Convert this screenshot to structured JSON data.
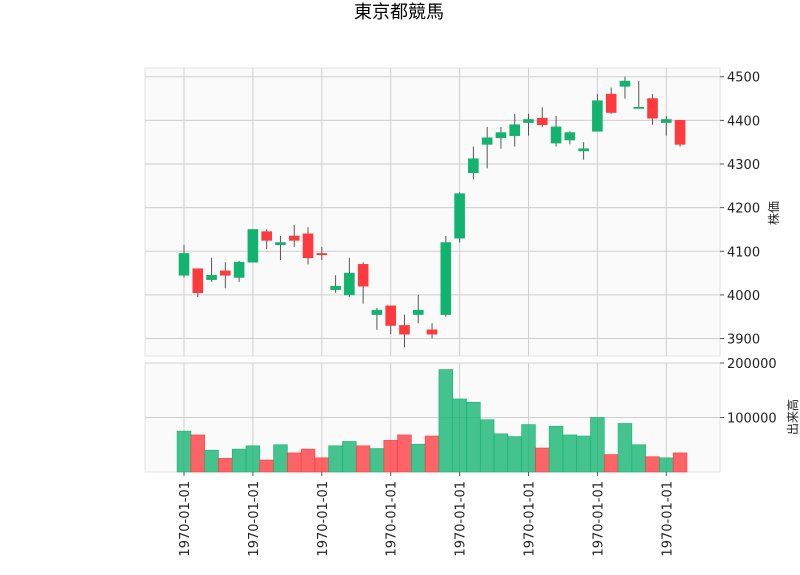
{
  "chart_data": {
    "type": "candlestick",
    "title": "東京都競馬",
    "price_ylabel": "株価",
    "volume_ylabel": "出来高",
    "price_ylim": [
      3860,
      4520
    ],
    "price_yticks": [
      "3900",
      "4000",
      "4100",
      "4200",
      "4300",
      "4400",
      "4500"
    ],
    "volume_ylim": [
      0,
      200000
    ],
    "volume_yticks": [
      "100000",
      "200000"
    ],
    "xtick_labels": [
      "1970-01-01",
      "1970-01-01",
      "1970-01-01",
      "1970-01-01",
      "1970-01-01",
      "1970-01-01",
      "1970-01-01",
      "1970-01-01"
    ],
    "xtick_indices": [
      0,
      5,
      10,
      15,
      20,
      25,
      30,
      35
    ],
    "grid": true,
    "up_color": "#12b36f",
    "down_color": "#fd3a3d",
    "candles": [
      {
        "open": 4045,
        "high": 4115,
        "low": 4040,
        "close": 4095
      },
      {
        "open": 4060,
        "high": 4060,
        "low": 3995,
        "close": 4005
      },
      {
        "open": 4035,
        "high": 4085,
        "low": 4030,
        "close": 4045
      },
      {
        "open": 4055,
        "high": 4075,
        "low": 4015,
        "close": 4045
      },
      {
        "open": 4040,
        "high": 4078,
        "low": 4030,
        "close": 4075
      },
      {
        "open": 4075,
        "high": 4150,
        "low": 4075,
        "close": 4150
      },
      {
        "open": 4145,
        "high": 4150,
        "low": 4105,
        "close": 4125
      },
      {
        "open": 4115,
        "high": 4135,
        "low": 4080,
        "close": 4120
      },
      {
        "open": 4135,
        "high": 4160,
        "low": 4110,
        "close": 4125
      },
      {
        "open": 4140,
        "high": 4155,
        "low": 4070,
        "close": 4085
      },
      {
        "open": 4095,
        "high": 4110,
        "low": 4080,
        "close": 4092
      },
      {
        "open": 4012,
        "high": 4045,
        "low": 4005,
        "close": 4020
      },
      {
        "open": 4000,
        "high": 4085,
        "low": 3995,
        "close": 4050
      },
      {
        "open": 4070,
        "high": 4075,
        "low": 3980,
        "close": 4020
      },
      {
        "open": 3955,
        "high": 3970,
        "low": 3920,
        "close": 3965
      },
      {
        "open": 3975,
        "high": 3975,
        "low": 3910,
        "close": 3930
      },
      {
        "open": 3930,
        "high": 3955,
        "low": 3880,
        "close": 3910
      },
      {
        "open": 3955,
        "high": 4000,
        "low": 3935,
        "close": 3965
      },
      {
        "open": 3920,
        "high": 3935,
        "low": 3900,
        "close": 3910
      },
      {
        "open": 3955,
        "high": 4135,
        "low": 3950,
        "close": 4120
      },
      {
        "open": 4130,
        "high": 4235,
        "low": 4120,
        "close": 4232
      },
      {
        "open": 4280,
        "high": 4340,
        "low": 4265,
        "close": 4312
      },
      {
        "open": 4345,
        "high": 4385,
        "low": 4290,
        "close": 4360
      },
      {
        "open": 4360,
        "high": 4385,
        "low": 4335,
        "close": 4372
      },
      {
        "open": 4365,
        "high": 4415,
        "low": 4340,
        "close": 4390
      },
      {
        "open": 4395,
        "high": 4415,
        "low": 4365,
        "close": 4402
      },
      {
        "open": 4405,
        "high": 4430,
        "low": 4385,
        "close": 4390
      },
      {
        "open": 4348,
        "high": 4410,
        "low": 4340,
        "close": 4385
      },
      {
        "open": 4355,
        "high": 4375,
        "low": 4345,
        "close": 4372
      },
      {
        "open": 4330,
        "high": 4350,
        "low": 4310,
        "close": 4335
      },
      {
        "open": 4375,
        "high": 4460,
        "low": 4375,
        "close": 4445
      },
      {
        "open": 4460,
        "high": 4475,
        "low": 4415,
        "close": 4418
      },
      {
        "open": 4478,
        "high": 4500,
        "low": 4450,
        "close": 4490
      },
      {
        "open": 4430,
        "high": 4490,
        "low": 4430,
        "close": 4430
      },
      {
        "open": 4450,
        "high": 4460,
        "low": 4390,
        "close": 4405
      },
      {
        "open": 4395,
        "high": 4410,
        "low": 4365,
        "close": 4402
      },
      {
        "open": 4400,
        "high": 4400,
        "low": 4340,
        "close": 4345
      }
    ],
    "volumes": [
      75000,
      68000,
      40000,
      25000,
      42000,
      48000,
      22000,
      50000,
      35000,
      42000,
      26000,
      48000,
      56000,
      48000,
      43000,
      58000,
      68000,
      51000,
      66000,
      188000,
      134000,
      128000,
      96000,
      70000,
      65000,
      87000,
      44000,
      84000,
      68000,
      66000,
      100000,
      32000,
      89000,
      50000,
      28000,
      26000,
      35000
    ]
  }
}
